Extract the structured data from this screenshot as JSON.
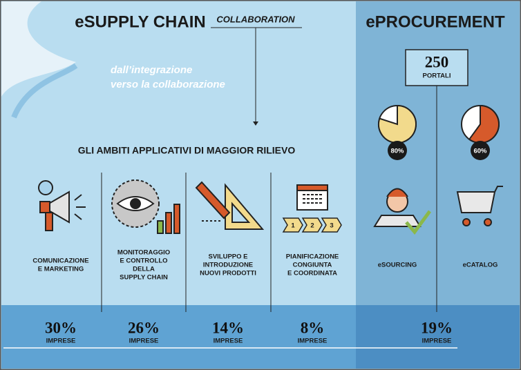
{
  "header": {
    "left_title": "eSUPPLY CHAIN",
    "left_subtitle": "COLLABORATION",
    "right_title": "ePROCUREMENT"
  },
  "tagline": [
    "dall’integrazione",
    "verso la collaborazione"
  ],
  "section_title": "GLI AMBITI APPLICATIVI DI MAGGIOR RILIEVO",
  "portals": {
    "value": 250,
    "label": "PORTALI"
  },
  "areas": [
    {
      "label": [
        "COMUNICAZIONE",
        "E MARKETING"
      ],
      "share": "30%",
      "unit": "IMPRESE"
    },
    {
      "label": [
        "MONITORAGGIO",
        "E CONTROLLO",
        "DELLA",
        "SUPPLY CHAIN"
      ],
      "share": "26%",
      "unit": "IMPRESE"
    },
    {
      "label": [
        "SVILUPPO E",
        "INTRODUZIONE",
        "NUOVI PRODOTTI"
      ],
      "share": "14%",
      "unit": "IMPRESE"
    },
    {
      "label": [
        "PIANIFICAZIONE",
        "CONGIUNTA",
        "E COORDINATA"
      ],
      "share": "8%",
      "unit": "IMPRESE"
    }
  ],
  "steps": [
    "1",
    "2",
    "3"
  ],
  "procurement": [
    {
      "label": "eSOURCING",
      "pie": {
        "value": 80,
        "label": "80%"
      },
      "color": "#f2da8c"
    },
    {
      "label": "eCATALOG",
      "pie": {
        "value": 60,
        "label": "60%"
      },
      "color": "#d65a2b"
    }
  ],
  "procurement_share": "19%",
  "procurement_unit": "IMPRESE"
}
